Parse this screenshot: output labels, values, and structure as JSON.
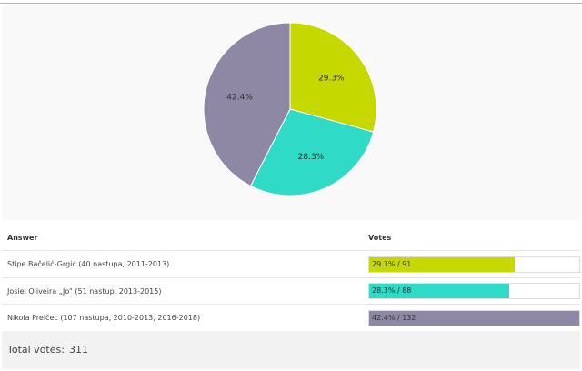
{
  "chart_data": {
    "type": "pie",
    "categories": [
      "Stipe Bačelić-Grgić (40 nastupa, 2011-2013)",
      "Josiel Oliveira „Jo“ (51 nastup, 2013-2015)",
      "Nikola Prelčec (107 nastupa, 2010-2013, 2016-2018)"
    ],
    "values": [
      91,
      88,
      132
    ],
    "percent_labels": [
      "29.3%",
      "28.3%",
      "42.4%"
    ],
    "colors": [
      "#c5d800",
      "#2fdac6",
      "#8e88a4"
    ]
  },
  "table": {
    "header_answer": "Answer",
    "header_votes": "Votes",
    "rows": [
      {
        "answer": "Stipe Bačelić-Grgić (40 nastupa, 2011-2013)",
        "votes_text": "29.3% / 91",
        "percent": 29.3
      },
      {
        "answer": "Josiel Oliveira „Jo“ (51 nastup, 2013-2015)",
        "votes_text": "28.3% / 88",
        "percent": 28.3
      },
      {
        "answer": "Nikola Prelčec (107 nastupa, 2010-2013, 2016-2018)",
        "votes_text": "42.4% / 132",
        "percent": 42.4
      }
    ]
  },
  "total": {
    "label": "Total votes:",
    "value": "311"
  }
}
